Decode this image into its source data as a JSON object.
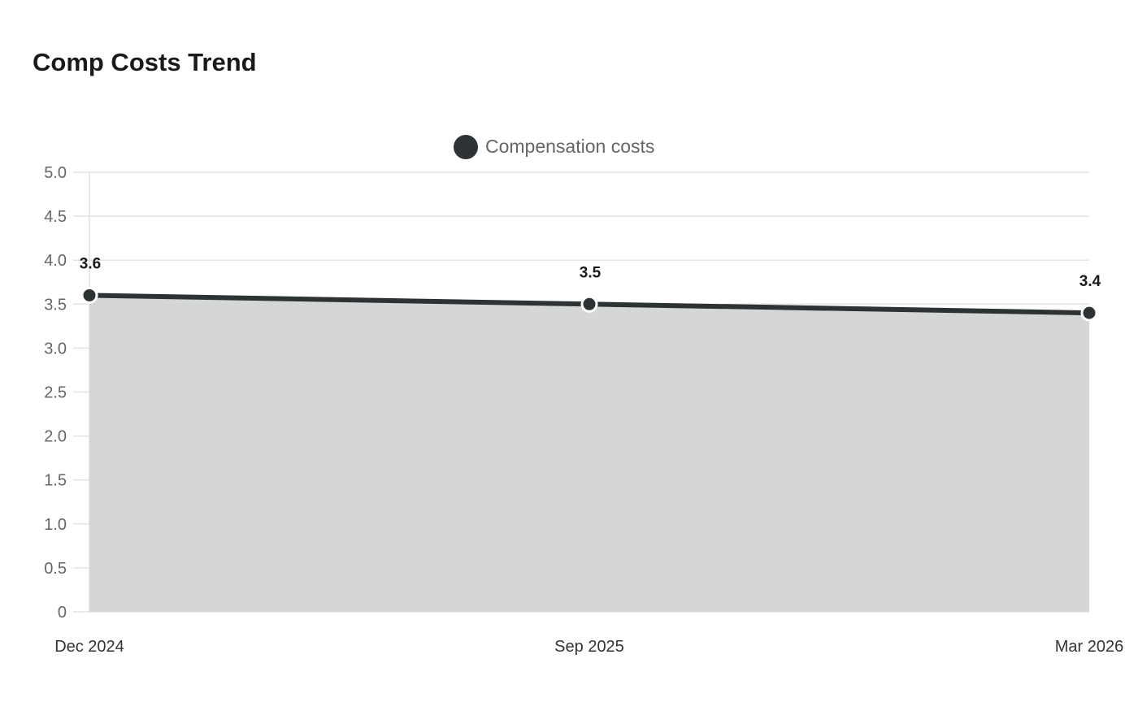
{
  "chart_data": {
    "type": "area",
    "title": "Comp Costs Trend",
    "categories": [
      "Dec 2024",
      "Sep 2025",
      "Mar 2026"
    ],
    "series": [
      {
        "name": "Compensation costs",
        "values": [
          3.6,
          3.5,
          3.4
        ],
        "data_labels": [
          "3.6",
          "3.5",
          "3.4"
        ]
      }
    ],
    "ylim": [
      0,
      5.0
    ],
    "y_ticks": [
      0,
      0.5,
      1.0,
      1.5,
      2.0,
      2.5,
      3.0,
      3.5,
      4.0,
      4.5,
      5.0
    ],
    "y_tick_labels": [
      "0",
      "0.5",
      "1.0",
      "1.5",
      "2.0",
      "2.5",
      "3.0",
      "3.5",
      "4.0",
      "4.5",
      "5.0"
    ],
    "xlabel": "",
    "ylabel": "",
    "grid": true,
    "legend_position": "top-center",
    "colors": {
      "line": "#2d3235",
      "fill": "#d5d7d6",
      "grid": "#e3e3e3",
      "marker_stroke": "#ffffff"
    }
  }
}
